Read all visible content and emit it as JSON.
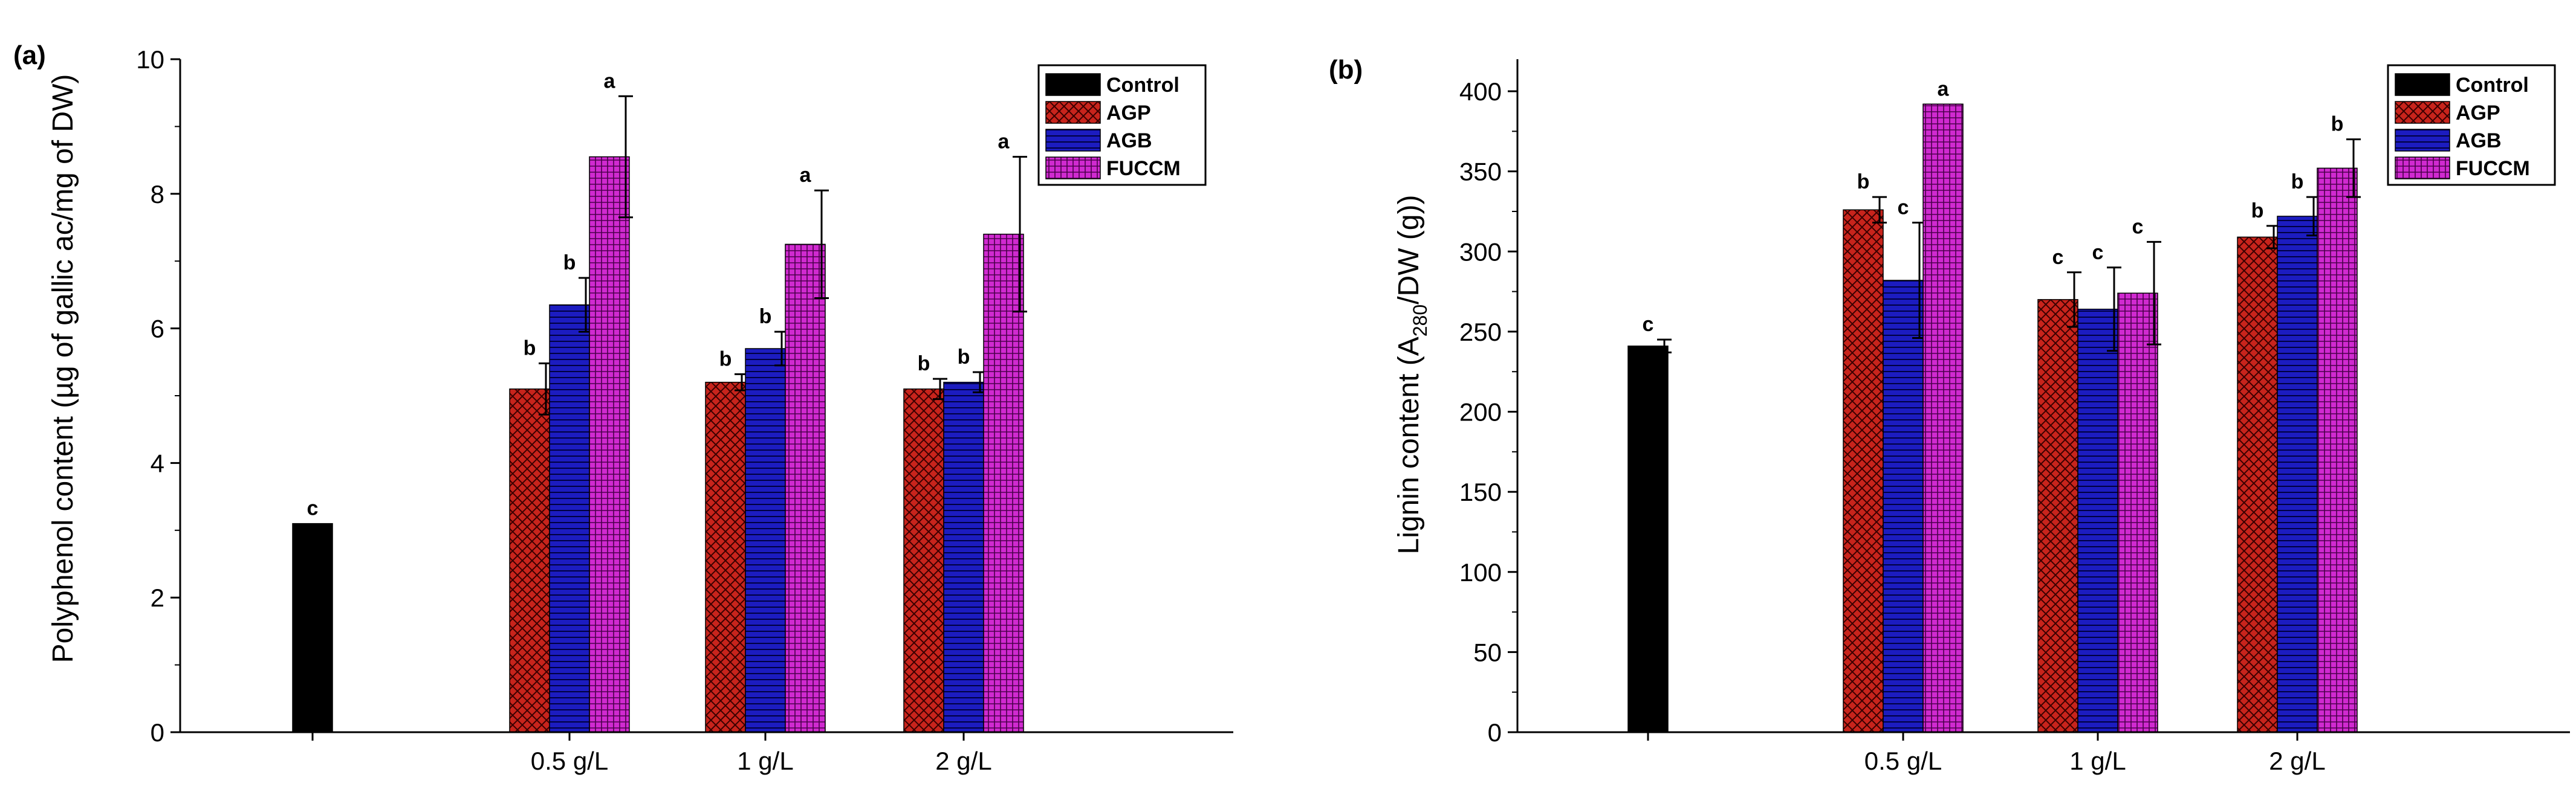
{
  "chart_data": [
    {
      "panel_label": "(a)",
      "type": "bar",
      "ylabel": "Polyphenol content (µg of gallic ac/mg of DW)",
      "ylim": [
        0,
        10
      ],
      "yticks": [
        0,
        2,
        4,
        6,
        8,
        10
      ],
      "groups": [
        "",
        "0.5 g/L",
        "1 g/L",
        "2 g/L"
      ],
      "legend": [
        "Control",
        "AGP",
        "AGB",
        "FUCCM"
      ],
      "legend_position": "top-right",
      "series": [
        {
          "name": "Control",
          "group": "",
          "value": 3.1,
          "error": 0,
          "letter": "c"
        },
        {
          "name": "AGP",
          "group": "0.5 g/L",
          "value": 5.1,
          "error": 0.38,
          "letter": "b"
        },
        {
          "name": "AGB",
          "group": "0.5 g/L",
          "value": 6.35,
          "error": 0.4,
          "letter": "b"
        },
        {
          "name": "FUCCM",
          "group": "0.5 g/L",
          "value": 8.55,
          "error": 0.9,
          "letter": "a"
        },
        {
          "name": "AGP",
          "group": "1 g/L",
          "value": 5.2,
          "error": 0.12,
          "letter": "b"
        },
        {
          "name": "AGB",
          "group": "1 g/L",
          "value": 5.7,
          "error": 0.25,
          "letter": "b"
        },
        {
          "name": "FUCCM",
          "group": "1 g/L",
          "value": 7.25,
          "error": 0.8,
          "letter": "a"
        },
        {
          "name": "AGP",
          "group": "2 g/L",
          "value": 5.1,
          "error": 0.15,
          "letter": "b"
        },
        {
          "name": "AGB",
          "group": "2 g/L",
          "value": 5.2,
          "error": 0.15,
          "letter": "b"
        },
        {
          "name": "FUCCM",
          "group": "2 g/L",
          "value": 7.4,
          "error": 1.15,
          "letter": "a"
        }
      ]
    },
    {
      "panel_label": "(b)",
      "type": "bar",
      "ylabel_main": "Lignin content (A",
      "ylabel_sub": "280",
      "ylabel_tail": "/DW (g))",
      "ylim": [
        0,
        420
      ],
      "yticks": [
        0,
        50,
        100,
        150,
        200,
        250,
        300,
        350,
        400
      ],
      "groups": [
        "",
        "0.5 g/L",
        "1 g/L",
        "2 g/L"
      ],
      "legend": [
        "Control",
        "AGP",
        "AGB",
        "FUCCM"
      ],
      "legend_position": "top-right",
      "series": [
        {
          "name": "Control",
          "group": "",
          "value": 241,
          "error": 4,
          "letter": "c"
        },
        {
          "name": "AGP",
          "group": "0.5 g/L",
          "value": 326,
          "error": 8,
          "letter": "b"
        },
        {
          "name": "AGB",
          "group": "0.5 g/L",
          "value": 282,
          "error": 36,
          "letter": "c"
        },
        {
          "name": "FUCCM",
          "group": "0.5 g/L",
          "value": 392,
          "error": 0,
          "letter": "a"
        },
        {
          "name": "AGP",
          "group": "1 g/L",
          "value": 270,
          "error": 17,
          "letter": "c"
        },
        {
          "name": "AGB",
          "group": "1 g/L",
          "value": 264,
          "error": 26,
          "letter": "c"
        },
        {
          "name": "FUCCM",
          "group": "1 g/L",
          "value": 274,
          "error": 32,
          "letter": "c"
        },
        {
          "name": "AGP",
          "group": "2 g/L",
          "value": 309,
          "error": 7,
          "letter": "b"
        },
        {
          "name": "AGB",
          "group": "2 g/L",
          "value": 322,
          "error": 12,
          "letter": "b"
        },
        {
          "name": "FUCCM",
          "group": "2 g/L",
          "value": 352,
          "error": 18,
          "letter": "b"
        }
      ]
    }
  ],
  "colors": {
    "Control": "#000000",
    "AGP": "#c8241c",
    "AGB": "#1c1cc0",
    "FUCCM": "#c020c0",
    "axis": "#000000"
  }
}
